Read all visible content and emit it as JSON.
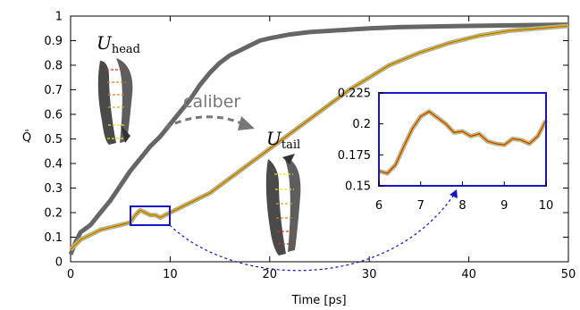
{
  "chart_data": [
    {
      "type": "line",
      "xlabel": "Time [ps]",
      "ylabel": "Q̄",
      "xlim": [
        0,
        50
      ],
      "ylim": [
        0,
        1
      ],
      "xticks": [
        "0",
        "10",
        "20",
        "30",
        "40",
        "50"
      ],
      "yticks": [
        "0",
        "0.1",
        "0.2",
        "0.3",
        "0.4",
        "0.5",
        "0.6",
        "0.7",
        "0.8",
        "0.9",
        "1"
      ],
      "grid": false,
      "series": [
        {
          "label_main": "U",
          "label_sub": "head",
          "color": "#666666",
          "x": [
            0,
            0.5,
            1,
            2,
            3,
            4,
            5,
            6,
            7,
            8,
            9,
            10,
            11,
            12,
            13,
            14,
            15,
            16,
            17,
            18,
            19,
            20,
            22,
            24,
            26,
            28,
            30,
            33,
            36,
            40,
            45,
            50
          ],
          "y": [
            0.03,
            0.08,
            0.12,
            0.15,
            0.2,
            0.25,
            0.31,
            0.37,
            0.42,
            0.47,
            0.51,
            0.56,
            0.61,
            0.66,
            0.72,
            0.77,
            0.81,
            0.84,
            0.86,
            0.88,
            0.9,
            0.91,
            0.925,
            0.935,
            0.94,
            0.945,
            0.95,
            0.955,
            0.957,
            0.96,
            0.963,
            0.965
          ]
        },
        {
          "label_main": "U",
          "label_sub": "tail",
          "color": "#d4d100",
          "x": [
            0,
            1,
            2,
            3,
            4,
            5,
            6,
            6.5,
            7,
            7.5,
            8,
            8.5,
            9,
            9.5,
            10,
            11,
            12,
            13,
            14,
            15,
            16,
            17,
            18,
            19,
            20,
            22,
            24,
            26,
            28,
            30,
            32,
            35,
            38,
            41,
            44,
            47,
            50
          ],
          "y": [
            0.05,
            0.09,
            0.11,
            0.13,
            0.14,
            0.15,
            0.16,
            0.19,
            0.21,
            0.2,
            0.19,
            0.19,
            0.18,
            0.19,
            0.2,
            0.22,
            0.24,
            0.26,
            0.28,
            0.31,
            0.34,
            0.37,
            0.4,
            0.43,
            0.46,
            0.52,
            0.58,
            0.64,
            0.7,
            0.75,
            0.8,
            0.85,
            0.89,
            0.92,
            0.94,
            0.95,
            0.96
          ]
        }
      ],
      "annotations": {
        "caliber": "caliber"
      }
    },
    {
      "type": "line",
      "xlim": [
        6,
        10
      ],
      "ylim": [
        0.15,
        0.225
      ],
      "xticks": [
        "6",
        "7",
        "8",
        "9",
        "10"
      ],
      "yticks": [
        "0.15",
        "0.175",
        "0.2",
        "0.225"
      ],
      "series": [
        {
          "x": [
            6.0,
            6.2,
            6.4,
            6.6,
            6.8,
            7.0,
            7.2,
            7.4,
            7.6,
            7.8,
            8.0,
            8.2,
            8.4,
            8.6,
            8.8,
            9.0,
            9.2,
            9.4,
            9.6,
            9.8,
            10.0
          ],
          "y": [
            0.162,
            0.16,
            0.167,
            0.182,
            0.196,
            0.206,
            0.21,
            0.205,
            0.2,
            0.193,
            0.194,
            0.19,
            0.192,
            0.186,
            0.184,
            0.183,
            0.188,
            0.187,
            0.184,
            0.19,
            0.203
          ]
        }
      ]
    }
  ]
}
